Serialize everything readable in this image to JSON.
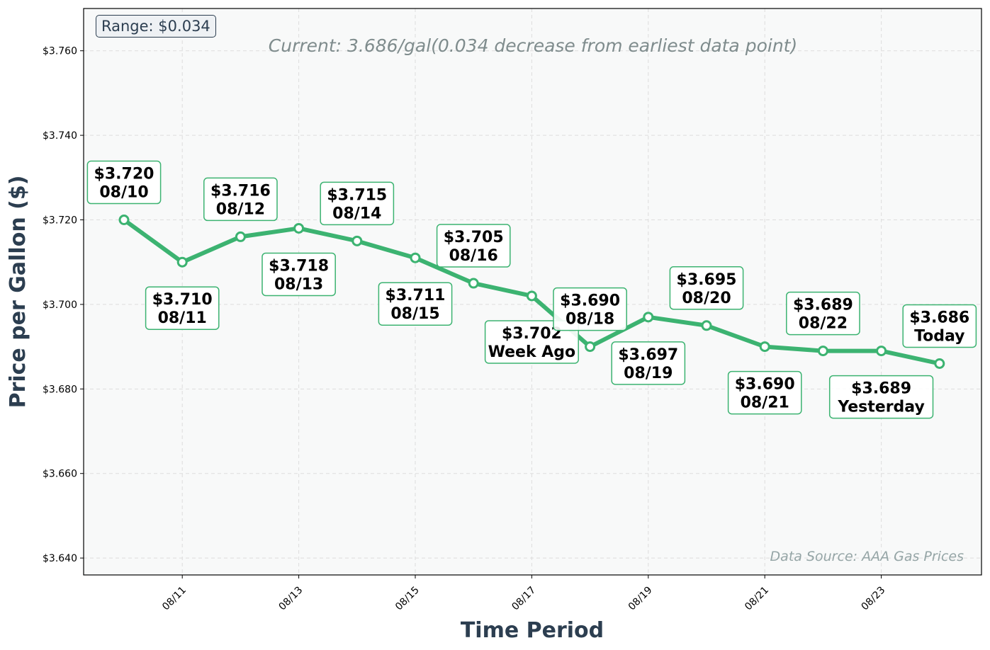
{
  "chart_data": {
    "type": "line",
    "title": "",
    "subtitle": "Current: 3.686/gal(0.034 decrease from earliest data point)",
    "xlabel": "Time Period",
    "ylabel": "Price per Gallon ($)",
    "range_label": "Range: $0.034",
    "source_note": "Data Source: AAA Gas Prices",
    "ylim": [
      3.636,
      3.77
    ],
    "yticks": [
      "$3.640",
      "$3.660",
      "$3.680",
      "$3.700",
      "$3.720",
      "$3.740",
      "$3.760"
    ],
    "ytick_values": [
      3.64,
      3.66,
      3.68,
      3.7,
      3.72,
      3.74,
      3.76
    ],
    "xticks": [
      "08/11",
      "08/13",
      "08/15",
      "08/17",
      "08/19",
      "08/21",
      "08/23"
    ],
    "xtick_values": [
      "2024-08-11",
      "2024-08-13",
      "2024-08-15",
      "2024-08-17",
      "2024-08-19",
      "2024-08-21",
      "2024-08-23"
    ],
    "grid": true,
    "series": [
      {
        "color": "#3cb371",
        "points": [
          {
            "x": "2024-08-10",
            "y": 3.72,
            "price_label": "$3.720",
            "date_label": "08/10",
            "label_pos": "above"
          },
          {
            "x": "2024-08-11",
            "y": 3.71,
            "price_label": "$3.710",
            "date_label": "08/11",
            "label_pos": "below"
          },
          {
            "x": "2024-08-12",
            "y": 3.716,
            "price_label": "$3.716",
            "date_label": "08/12",
            "label_pos": "above"
          },
          {
            "x": "2024-08-13",
            "y": 3.718,
            "price_label": "$3.718",
            "date_label": "08/13",
            "label_pos": "below"
          },
          {
            "x": "2024-08-14",
            "y": 3.715,
            "price_label": "$3.715",
            "date_label": "08/14",
            "label_pos": "above"
          },
          {
            "x": "2024-08-15",
            "y": 3.711,
            "price_label": "$3.711",
            "date_label": "08/15",
            "label_pos": "below"
          },
          {
            "x": "2024-08-16",
            "y": 3.705,
            "price_label": "$3.705",
            "date_label": "08/16",
            "label_pos": "above"
          },
          {
            "x": "2024-08-17",
            "y": 3.702,
            "price_label": "$3.702",
            "date_label": "Week Ago",
            "label_pos": "below"
          },
          {
            "x": "2024-08-18",
            "y": 3.69,
            "price_label": "$3.690",
            "date_label": "08/18",
            "label_pos": "above"
          },
          {
            "x": "2024-08-19",
            "y": 3.697,
            "price_label": "$3.697",
            "date_label": "08/19",
            "label_pos": "below"
          },
          {
            "x": "2024-08-20",
            "y": 3.695,
            "price_label": "$3.695",
            "date_label": "08/20",
            "label_pos": "above"
          },
          {
            "x": "2024-08-21",
            "y": 3.69,
            "price_label": "$3.690",
            "date_label": "08/21",
            "label_pos": "below"
          },
          {
            "x": "2024-08-22",
            "y": 3.689,
            "price_label": "$3.689",
            "date_label": "08/22",
            "label_pos": "above"
          },
          {
            "x": "2024-08-23",
            "y": 3.689,
            "price_label": "$3.689",
            "date_label": "Yesterday",
            "label_pos": "below"
          },
          {
            "x": "2024-08-24",
            "y": 3.686,
            "price_label": "$3.686",
            "date_label": "Today",
            "label_pos": "above"
          }
        ]
      }
    ],
    "colors": {
      "line": "#3cb371",
      "plot_background": "#f8f9f9",
      "axis_title": "#2c3e50",
      "subtitle": "#7f8c8d",
      "source_note": "#95a5a6",
      "label_border": "#3cb371"
    }
  }
}
